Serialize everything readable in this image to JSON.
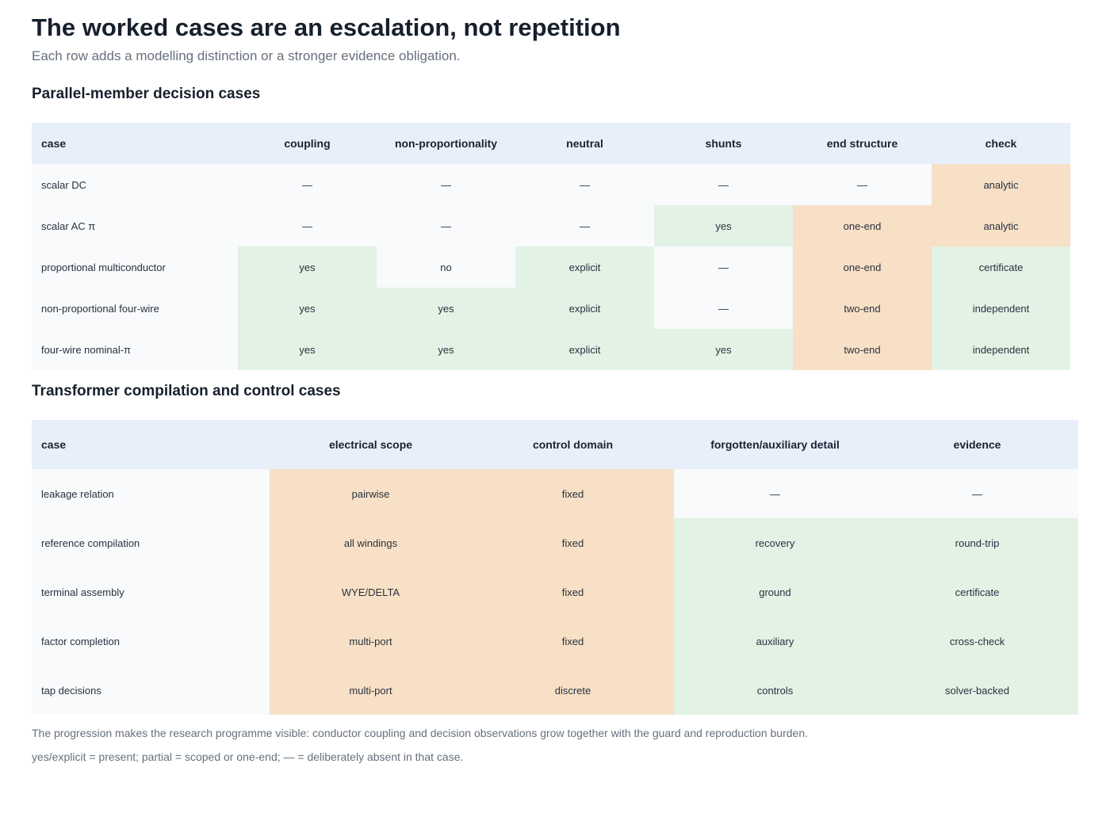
{
  "title": "The worked cases are an escalation, not repetition",
  "subtitle": "Each row adds a modelling distinction or a stronger evidence obligation.",
  "colors": {
    "header": "#e7f0fa",
    "absent": "#f8fafc",
    "present": "#e2f2e4",
    "scoped": "#f7e0c5"
  },
  "section1": {
    "title": "Parallel-member decision cases",
    "columns": [
      "case",
      "coupling",
      "non-proportionality",
      "neutral",
      "shunts",
      "end structure",
      "check"
    ],
    "rows": [
      {
        "cells": [
          "scalar DC",
          "—",
          "—",
          "—",
          "—",
          "—",
          "analytic"
        ],
        "tones": [
          "none",
          "none",
          "none",
          "none",
          "none",
          "none",
          "orange"
        ]
      },
      {
        "cells": [
          "scalar AC π",
          "—",
          "—",
          "—",
          "yes",
          "one-end",
          "analytic"
        ],
        "tones": [
          "none",
          "none",
          "none",
          "none",
          "green",
          "orange",
          "orange"
        ]
      },
      {
        "cells": [
          "proportional multiconductor",
          "yes",
          "no",
          "explicit",
          "—",
          "one-end",
          "certificate"
        ],
        "tones": [
          "none",
          "green",
          "none",
          "green",
          "none",
          "orange",
          "green"
        ]
      },
      {
        "cells": [
          "non-proportional four-wire",
          "yes",
          "yes",
          "explicit",
          "—",
          "two-end",
          "independent"
        ],
        "tones": [
          "none",
          "green",
          "green",
          "green",
          "none",
          "orange",
          "green"
        ]
      },
      {
        "cells": [
          "four-wire nominal-π",
          "yes",
          "yes",
          "explicit",
          "yes",
          "two-end",
          "independent"
        ],
        "tones": [
          "none",
          "green",
          "green",
          "green",
          "green",
          "orange",
          "green"
        ]
      }
    ]
  },
  "section2": {
    "title": "Transformer compilation and control cases",
    "columns": [
      "case",
      "electrical scope",
      "control domain",
      "forgotten/auxiliary detail",
      "evidence"
    ],
    "rows": [
      {
        "cells": [
          "leakage relation",
          "pairwise",
          "fixed",
          "—",
          "—"
        ],
        "tones": [
          "none",
          "orange",
          "orange",
          "none",
          "none"
        ]
      },
      {
        "cells": [
          "reference compilation",
          "all windings",
          "fixed",
          "recovery",
          "round-trip"
        ],
        "tones": [
          "none",
          "orange",
          "orange",
          "green",
          "green"
        ]
      },
      {
        "cells": [
          "terminal assembly",
          "WYE/DELTA",
          "fixed",
          "ground",
          "certificate"
        ],
        "tones": [
          "none",
          "orange",
          "orange",
          "green",
          "green"
        ]
      },
      {
        "cells": [
          "factor completion",
          "multi-port",
          "fixed",
          "auxiliary",
          "cross-check"
        ],
        "tones": [
          "none",
          "orange",
          "orange",
          "green",
          "green"
        ]
      },
      {
        "cells": [
          "tap decisions",
          "multi-port",
          "discrete",
          "controls",
          "solver-backed"
        ],
        "tones": [
          "none",
          "orange",
          "orange",
          "green",
          "green"
        ]
      }
    ]
  },
  "notes": [
    "The progression makes the research programme visible: conductor coupling and decision observations grow together with the guard and reproduction burden.",
    "yes/explicit = present; partial = scoped or one-end; — = deliberately absent in that case."
  ]
}
